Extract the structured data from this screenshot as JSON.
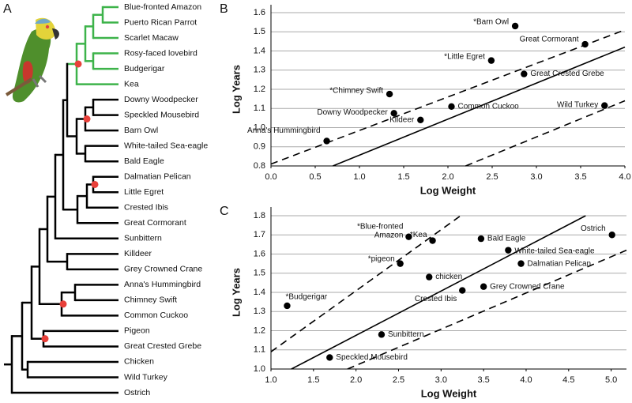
{
  "tree": {
    "label": "A",
    "leaves": [
      "Blue-fronted Amazon",
      "Puerto Rican Parrot",
      "Scarlet Macaw",
      "Rosy-faced lovebird",
      "Budgerigar",
      "Kea",
      "Downy Woodpecker",
      "Speckled Mousebird",
      "Barn Owl",
      "White-tailed Sea-eagle",
      "Bald Eagle",
      "Dalmatian Pelican",
      "Little Egret",
      "Crested Ibis",
      "Great Cormorant",
      "Sunbittern",
      "Killdeer",
      "Grey Crowned Crane",
      "Anna's Hummingbird",
      "Chimney Swift",
      "Common Cuckoo",
      "Pigeon",
      "Great Crested Grebe",
      "Chicken",
      "Wild Turkey",
      "Ostrich"
    ]
  },
  "chart_data": [
    {
      "type": "scatter",
      "panel_label": "B",
      "x_label": "Log Weight",
      "y_label": "Log Years",
      "color": "#000000",
      "grid": true,
      "xlim": [
        0,
        4.0
      ],
      "ylim": [
        0.8,
        1.6
      ],
      "xticks": [
        {
          "value": 0,
          "label": "0.0"
        },
        0.5,
        {
          "value": 1,
          "label": "1.0"
        },
        1.5,
        {
          "value": 2,
          "label": "2.0"
        },
        2.5,
        {
          "value": 3,
          "label": "3.0"
        },
        3.5,
        {
          "value": 4,
          "label": "4.0"
        }
      ],
      "yticks": [
        0.8,
        0.9,
        {
          "value": 1,
          "label": "1.0"
        },
        1.1,
        1.2,
        1.3,
        1.4,
        1.5,
        1.6
      ],
      "labels": [
        "*Barn Owl",
        "Great Cormorant",
        "*Little Egret",
        "Great Crested Grebe",
        "*Chimney Swift",
        "Common Cuckoo",
        "Wild Turkey",
        "Downy Woodpecker",
        "Kildeer",
        "Anna's Hummingbird"
      ],
      "x": [
        2.76,
        3.55,
        2.49,
        2.86,
        1.34,
        2.04,
        3.77,
        1.39,
        1.69,
        0.63
      ],
      "values": [
        1.53,
        1.435,
        1.35,
        1.28,
        1.175,
        1.11,
        1.115,
        1.075,
        1.04,
        0.93
      ],
      "fit_lines": [
        {
          "x": [
            0.7,
            4.0
          ],
          "y": [
            0.8,
            1.42
          ],
          "dashed": false
        },
        {
          "x": [
            0,
            4.0
          ],
          "y": [
            0.81,
            1.51
          ],
          "dashed": true
        },
        {
          "x": [
            2.2,
            4.0
          ],
          "y": [
            0.8,
            1.14
          ],
          "dashed": true
        }
      ]
    },
    {
      "type": "scatter",
      "panel_label": "C",
      "x_label": "Log Weight",
      "y_label": "Log Years",
      "color": "#000000",
      "grid": true,
      "xlim": [
        1.0,
        5.18
      ],
      "ylim": [
        1.0,
        1.8
      ],
      "xticks": [
        {
          "value": 1,
          "label": "1.0"
        },
        1.5,
        {
          "value": 2,
          "label": "2.0"
        },
        2.5,
        {
          "value": 3,
          "label": "3.0"
        },
        3.5,
        {
          "value": 4,
          "label": "4.0"
        },
        4.5,
        {
          "value": 5,
          "label": "5.0"
        }
      ],
      "yticks": [
        {
          "value": 1,
          "label": "1.0"
        },
        1.1,
        1.2,
        1.3,
        1.4,
        1.5,
        1.6,
        1.7,
        1.8
      ],
      "labels": [
        [
          "*Blue-fronted",
          "Amazon"
        ],
        "*Kea",
        "Bald Eagle",
        "Ostrich",
        "White-tailed Sea-eagle",
        "Dalmatian Pelican",
        "*pigeon",
        "chicken",
        "Grey Crowned Crane",
        "Crested Ibis",
        "*Budgerigar",
        "Sunbittern",
        "Speckled Mousebird"
      ],
      "x": [
        2.62,
        2.9,
        3.47,
        5.01,
        3.79,
        3.94,
        2.52,
        2.86,
        3.5,
        3.25,
        1.19,
        2.3,
        1.69
      ],
      "values": [
        1.69,
        1.67,
        1.68,
        1.7,
        1.62,
        1.55,
        1.55,
        1.48,
        1.43,
        1.41,
        1.33,
        1.18,
        1.06
      ],
      "fit_lines": [
        {
          "x": [
            1.24,
            4.7
          ],
          "y": [
            1.0,
            1.8
          ],
          "dashed": false
        },
        {
          "x": [
            1.0,
            3.23
          ],
          "y": [
            1.09,
            1.8
          ],
          "dashed": true
        },
        {
          "x": [
            1.9,
            5.18
          ],
          "y": [
            1.0,
            1.62
          ],
          "dashed": true
        }
      ]
    }
  ]
}
